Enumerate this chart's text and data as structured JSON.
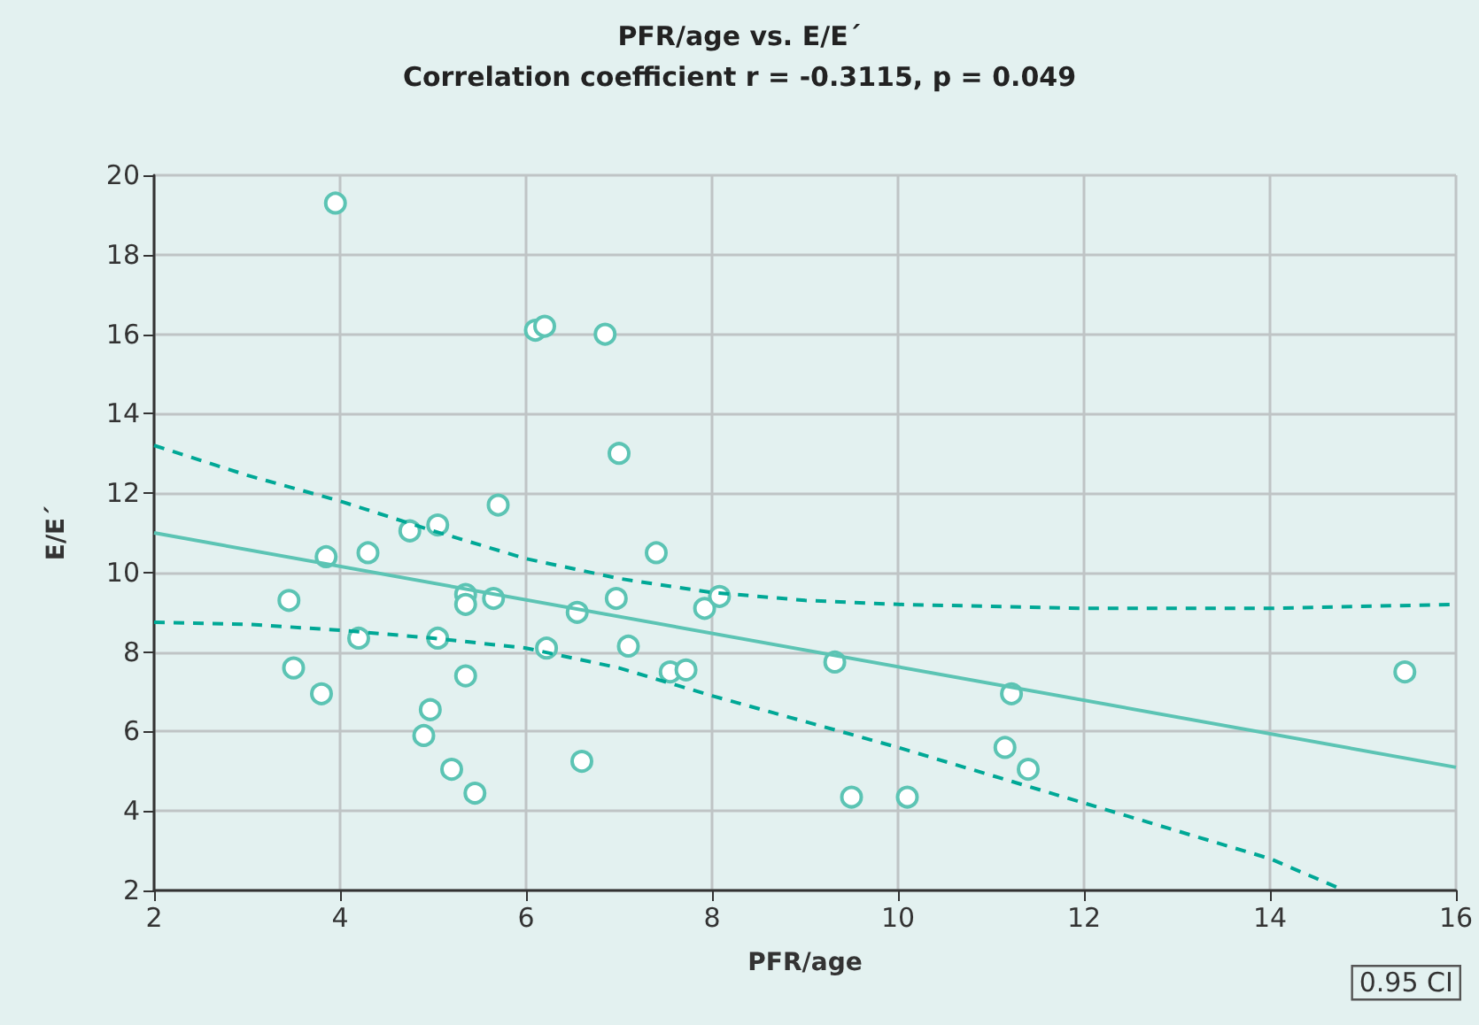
{
  "chart_data": {
    "type": "scatter",
    "title": "PFR/age vs. E/E´",
    "subtitle": "Correlation coefficient r = -0.3115, p = 0.049",
    "xlabel": "PFR/age",
    "ylabel": "E/E´",
    "annotations": [
      "0.95 CI"
    ],
    "xlim": [
      2,
      16
    ],
    "xticks": [
      2,
      4,
      6,
      8,
      10,
      12,
      14,
      16
    ],
    "ylim": [
      2,
      20
    ],
    "yticks": [
      2,
      4,
      6,
      8,
      10,
      12,
      14,
      16,
      18,
      20
    ],
    "grid": true,
    "series": [
      {
        "color": "#5cc4b4",
        "marker": "circle",
        "x": [
          3.45,
          3.5,
          3.8,
          3.85,
          3.95,
          4.2,
          4.3,
          4.75,
          4.9,
          4.97,
          5.05,
          5.05,
          5.2,
          5.35,
          5.35,
          5.35,
          5.45,
          5.65,
          5.7,
          6.1,
          6.2,
          6.22,
          6.55,
          6.6,
          6.85,
          7.0,
          6.97,
          7.1,
          7.4,
          7.55,
          7.72,
          7.92,
          8.08,
          9.32,
          9.5,
          10.1,
          11.15,
          11.22,
          11.4,
          15.45
        ],
        "values": [
          9.3,
          7.6,
          6.95,
          10.4,
          19.3,
          8.35,
          10.5,
          11.05,
          5.9,
          6.55,
          11.2,
          8.35,
          5.05,
          9.45,
          9.2,
          7.4,
          4.45,
          9.35,
          11.7,
          16.1,
          16.2,
          8.1,
          9.0,
          5.25,
          16.0,
          13.0,
          9.35,
          8.15,
          10.5,
          7.5,
          7.55,
          9.1,
          9.4,
          7.75,
          4.35,
          4.35,
          5.6,
          6.95,
          5.05,
          7.5
        ]
      },
      {
        "type": "line",
        "color": "#5cc4b4",
        "line_style": "solid",
        "marker": "none",
        "x": [
          2,
          16
        ],
        "values": [
          11.0,
          5.1
        ]
      },
      {
        "type": "line",
        "color": "#00a896",
        "line_style": "dashed",
        "marker": "none",
        "x": [
          2,
          3,
          4,
          5,
          6,
          7,
          8,
          9,
          10,
          12,
          14,
          16
        ],
        "values": [
          13.2,
          12.45,
          11.8,
          11.05,
          10.35,
          9.85,
          9.5,
          9.3,
          9.2,
          9.1,
          9.1,
          9.2
        ]
      },
      {
        "type": "line",
        "color": "#00a896",
        "line_style": "dashed",
        "marker": "none",
        "x": [
          2,
          3,
          4,
          5,
          6,
          7,
          8,
          9,
          10,
          12,
          14,
          14.8
        ],
        "values": [
          8.75,
          8.7,
          8.55,
          8.35,
          8.1,
          7.6,
          6.9,
          6.25,
          5.6,
          4.2,
          2.8,
          2.0
        ]
      }
    ]
  }
}
